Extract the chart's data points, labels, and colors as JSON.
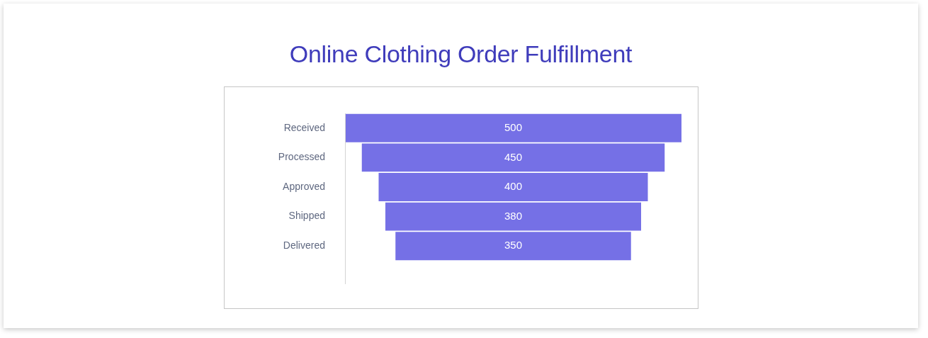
{
  "chart_data": {
    "type": "other",
    "title": "Online Clothing Order Fulfillment",
    "categories": [
      "Received",
      "Processed",
      "Approved",
      "Shipped",
      "Delivered"
    ],
    "values": [
      500,
      450,
      400,
      380,
      350
    ],
    "color": "#7570e6",
    "data_labels": true
  }
}
